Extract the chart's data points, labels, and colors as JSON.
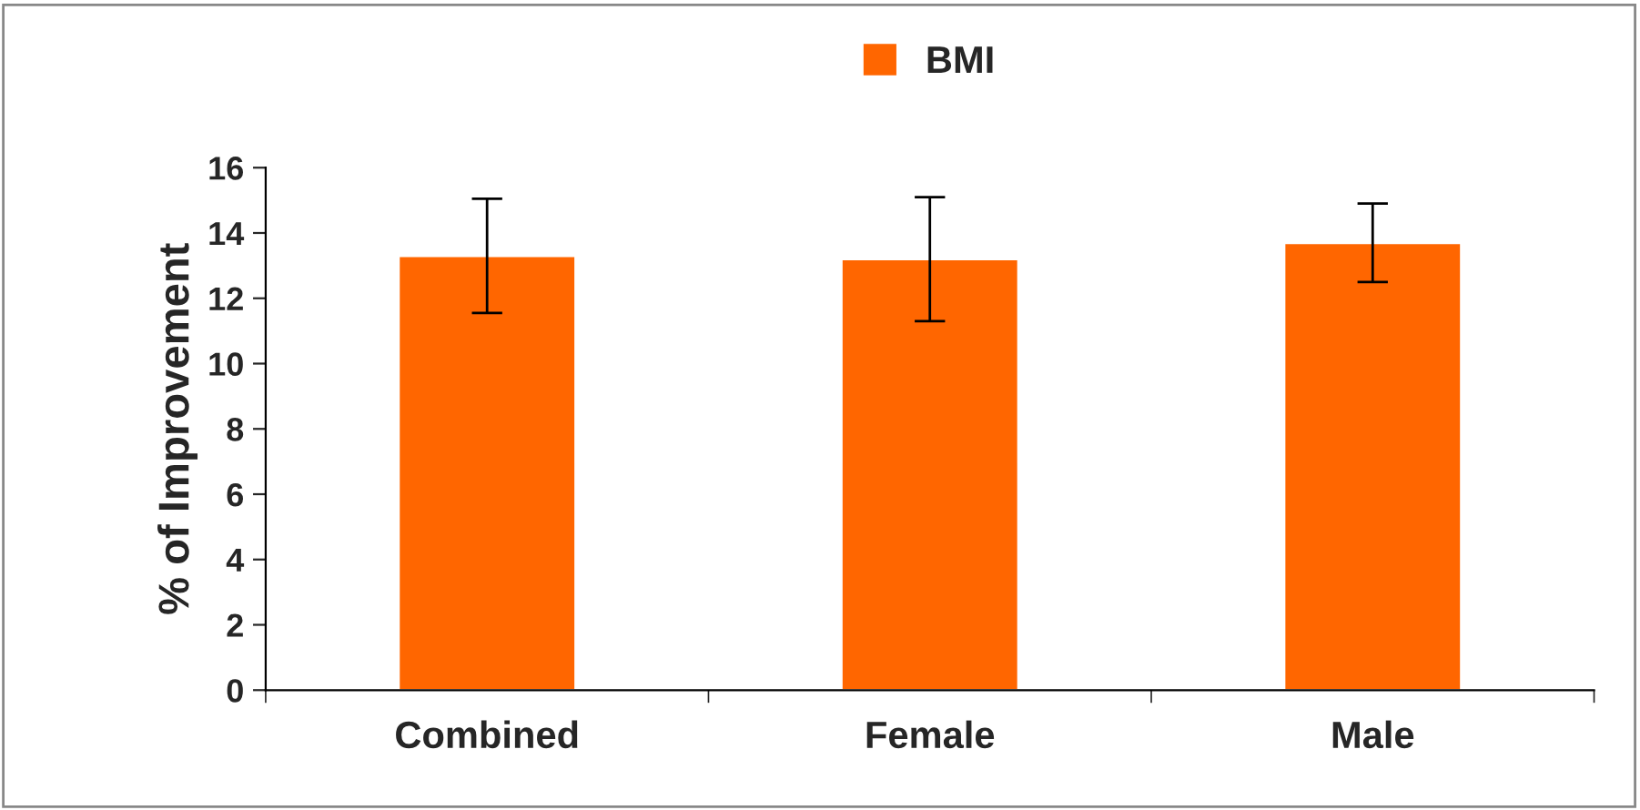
{
  "chart_data": {
    "type": "bar",
    "ylabel": "% of Improvement",
    "categories": [
      "Combined",
      "Female",
      "Male"
    ],
    "series": [
      {
        "name": "BMI",
        "color": "#ff6600",
        "values": [
          13.3,
          13.2,
          13.7
        ],
        "errors": [
          1.75,
          1.9,
          1.2
        ]
      }
    ],
    "ylim": [
      0,
      16
    ],
    "yticks": [
      0,
      2,
      4,
      6,
      8,
      10,
      12,
      14,
      16
    ],
    "grid": false,
    "legend": "top"
  }
}
